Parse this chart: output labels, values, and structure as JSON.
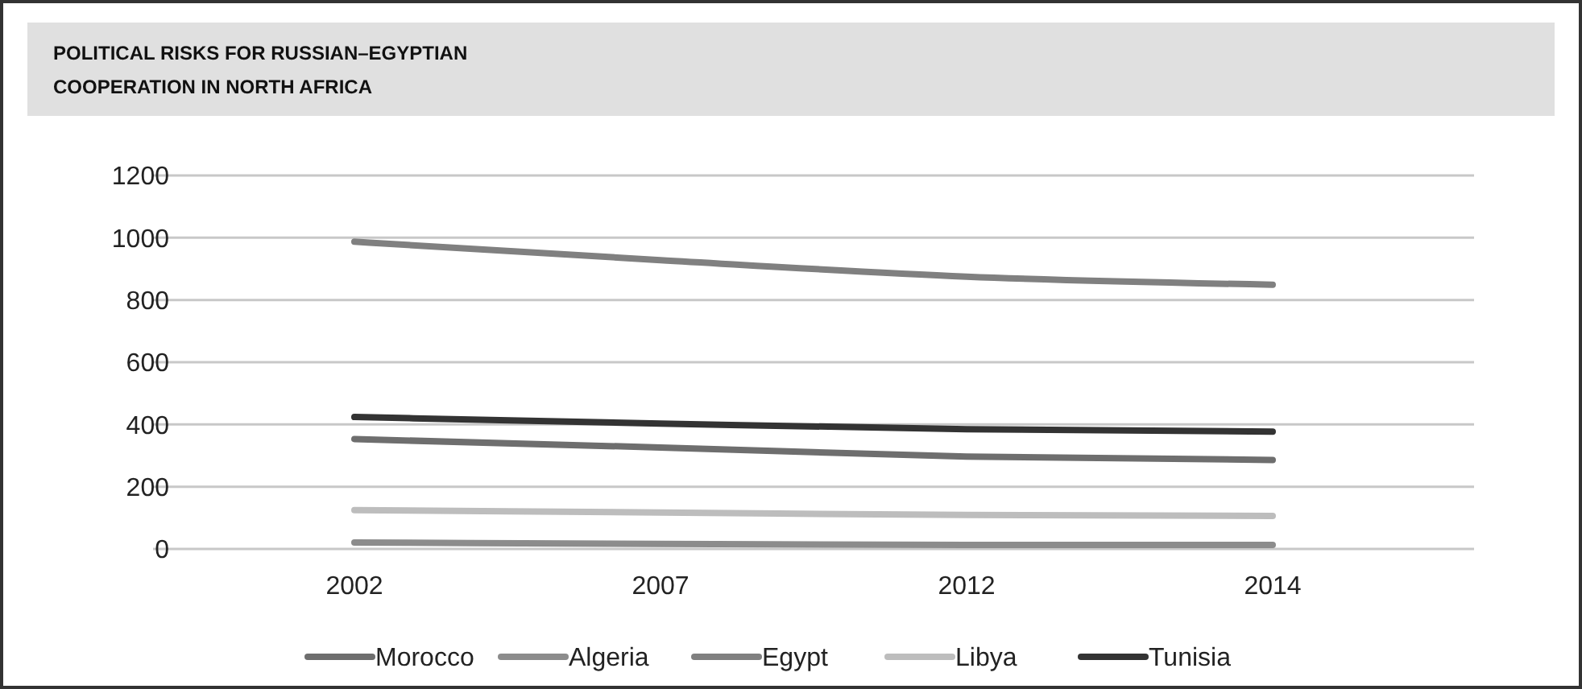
{
  "chart_data": {
    "type": "line",
    "title": "POLITICAL RISKS FOR RUSSIAN–EGYPTIAN COOPERATION IN NORTH AFRICA",
    "categories": [
      "2002",
      "2007",
      "2012",
      "2014"
    ],
    "series": [
      {
        "name": "Morocco",
        "color": "#6e6e6e",
        "values": [
          353,
          326,
          297,
          286
        ]
      },
      {
        "name": "Algeria",
        "color": "#8c8c8c",
        "values": [
          21,
          16,
          13,
          13
        ]
      },
      {
        "name": "Egypt",
        "color": "#808080",
        "values": [
          987,
          928,
          875,
          849
        ]
      },
      {
        "name": "Libya",
        "color": "#bdbdbd",
        "values": [
          125,
          117,
          109,
          106
        ]
      },
      {
        "name": "Tunisia",
        "color": "#333333",
        "values": [
          424,
          403,
          385,
          377
        ]
      }
    ],
    "ylim": [
      0,
      1200
    ],
    "yticks": [
      0,
      200,
      400,
      600,
      800,
      1000,
      1200
    ],
    "grid": "y",
    "legend": "bottom",
    "marker": "none",
    "line_style": "solid"
  }
}
